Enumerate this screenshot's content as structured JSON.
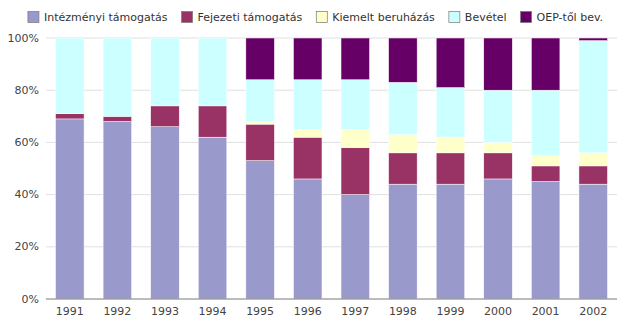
{
  "chart_data": {
    "type": "bar",
    "stacked": true,
    "categories": [
      "1991",
      "1992",
      "1993",
      "1994",
      "1995",
      "1996",
      "1997",
      "1998",
      "1999",
      "2000",
      "2001",
      "2002"
    ],
    "series": [
      {
        "name": "Intézményi támogatás",
        "color": "#9999cc",
        "values": [
          69,
          68,
          66,
          62,
          53,
          46,
          40,
          44,
          44,
          46,
          45,
          44
        ]
      },
      {
        "name": "Fejezeti támogatás",
        "color": "#993366",
        "values": [
          2,
          2,
          8,
          12,
          14,
          16,
          18,
          12,
          12,
          10,
          6,
          7
        ]
      },
      {
        "name": "Kiemelt beruházás",
        "color": "#ffffcc",
        "values": [
          0,
          0,
          0,
          0,
          1,
          3,
          7,
          7,
          6,
          4,
          4,
          5
        ]
      },
      {
        "name": "Bevétel",
        "color": "#ccffff",
        "values": [
          29,
          30,
          26,
          26,
          16,
          19,
          19,
          20,
          19,
          20,
          25,
          43
        ]
      },
      {
        "name": "OEP-től bev.",
        "color": "#660066",
        "values": [
          0,
          0,
          0,
          0,
          16,
          16,
          16,
          17,
          19,
          20,
          20,
          1
        ]
      }
    ],
    "ylim": [
      0,
      100
    ],
    "yticks": [
      {
        "value": 0,
        "label": "0%"
      },
      {
        "value": 20,
        "label": "20%"
      },
      {
        "value": 40,
        "label": "40%"
      },
      {
        "value": 60,
        "label": "60%"
      },
      {
        "value": 80,
        "label": "80%"
      },
      {
        "value": 100,
        "label": "100%"
      }
    ],
    "grid": true,
    "legend": "top"
  }
}
